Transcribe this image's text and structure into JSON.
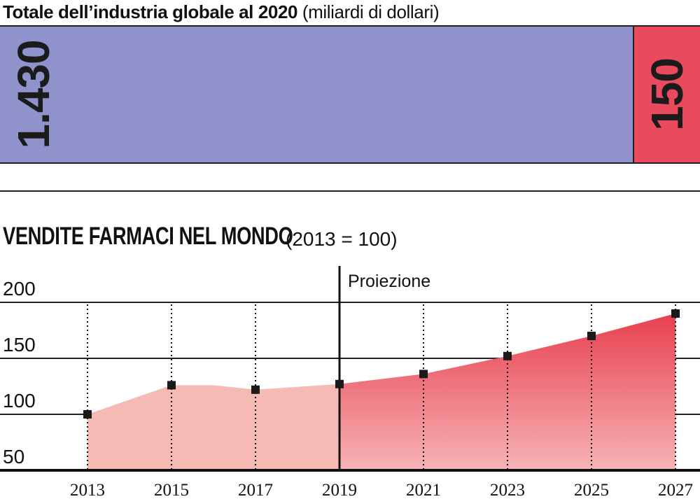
{
  "header": {
    "title_bold": "Totale dell’industria globale al 2020",
    "title_unit": "(miliardi di dollari)"
  },
  "stacked_bar": {
    "segments": [
      {
        "label": "1.430",
        "value": 1430,
        "color": "#9092cb"
      },
      {
        "label": "150",
        "value": 150,
        "color": "#ea4a5d"
      }
    ]
  },
  "chart_data": {
    "type": "area",
    "title": "VENDITE FARMACI NEL MONDO",
    "subtitle": "(2013 = 100)",
    "xlabel": "",
    "ylabel": "",
    "ylim": [
      50,
      200
    ],
    "yticks": [
      "200",
      "150",
      "100",
      "50"
    ],
    "x": [
      2013,
      2015,
      2016,
      2017,
      2019,
      2021,
      2023,
      2025,
      2027
    ],
    "y": [
      100,
      126,
      126,
      122,
      127,
      136,
      152,
      170,
      190
    ],
    "markers_at": [
      2013,
      2015,
      2017,
      2019,
      2021,
      2023,
      2025,
      2027
    ],
    "xtick_labels": [
      "2013",
      "2015",
      "2017",
      "2019",
      "2021",
      "2023",
      "2025",
      "2027"
    ],
    "projection_start": 2019,
    "projection_label": "Proiezione",
    "colors": {
      "historical": "#f4bab3",
      "projection_top": "#e8404f",
      "projection_bottom": "#f6b4b6",
      "marker": "#1a1a1a"
    },
    "grid": true
  }
}
